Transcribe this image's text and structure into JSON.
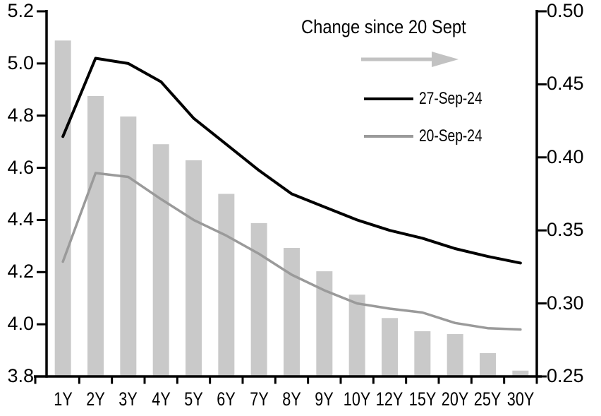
{
  "chart_data": {
    "type": "combo",
    "categories": [
      "1Y",
      "2Y",
      "3Y",
      "4Y",
      "5Y",
      "6Y",
      "7Y",
      "8Y",
      "9Y",
      "10Y",
      "12Y",
      "15Y",
      "20Y",
      "25Y",
      "30Y"
    ],
    "series": [
      {
        "name": "Change since 20 Sept",
        "type": "bar",
        "axis": "right",
        "color": "#C9C9C9",
        "values": [
          0.48,
          0.442,
          0.428,
          0.409,
          0.398,
          0.375,
          0.355,
          0.338,
          0.322,
          0.306,
          0.29,
          0.281,
          0.279,
          0.266,
          0.254
        ]
      },
      {
        "name": "20-Sep-24",
        "type": "line",
        "axis": "left",
        "color": "#9A9A9A",
        "values": [
          4.24,
          4.58,
          4.565,
          4.48,
          4.4,
          4.34,
          4.27,
          4.19,
          4.13,
          4.08,
          4.06,
          4.045,
          4.005,
          3.985,
          3.98
        ]
      },
      {
        "name": "27-Sep-24",
        "type": "line",
        "axis": "left",
        "color": "#000000",
        "values": [
          4.72,
          5.02,
          5.0,
          4.93,
          4.79,
          4.69,
          4.59,
          4.5,
          4.45,
          4.4,
          4.36,
          4.33,
          4.29,
          4.26,
          4.235
        ]
      }
    ],
    "left_axis": {
      "min": 3.8,
      "max": 5.2,
      "step": 0.2,
      "tick_labels": [
        "5.2",
        "5.0",
        "4.8",
        "4.6",
        "4.4",
        "4.2",
        "4.0",
        "3.8"
      ]
    },
    "right_axis": {
      "min": 0.25,
      "max": 0.5,
      "step": 0.05,
      "tick_labels": [
        "0.50",
        "0.45",
        "0.40",
        "0.35",
        "0.30",
        "0.25"
      ]
    },
    "x_tick_labels": [
      "1Y",
      "2Y",
      "3Y",
      "4Y",
      "5Y",
      "6Y",
      "7Y",
      "8Y",
      "9Y",
      "10Y",
      "12Y",
      "15Y",
      "20Y",
      "25Y",
      "30Y"
    ],
    "grid": false,
    "legend_position": "inside-top-right"
  },
  "legend": {
    "title": "Change since 20 Sept",
    "arrow_icon_color": "#C2C2C2",
    "entries": [
      {
        "label": "27-Sep-24",
        "color": "#000000"
      },
      {
        "label": "20-Sep-24",
        "color": "#9A9A9A"
      }
    ]
  },
  "colors": {
    "background": "#FFFFFF",
    "axis": "#000000",
    "bar": "#C9C9C9",
    "line_black": "#000000",
    "line_gray": "#9A9A9A"
  }
}
